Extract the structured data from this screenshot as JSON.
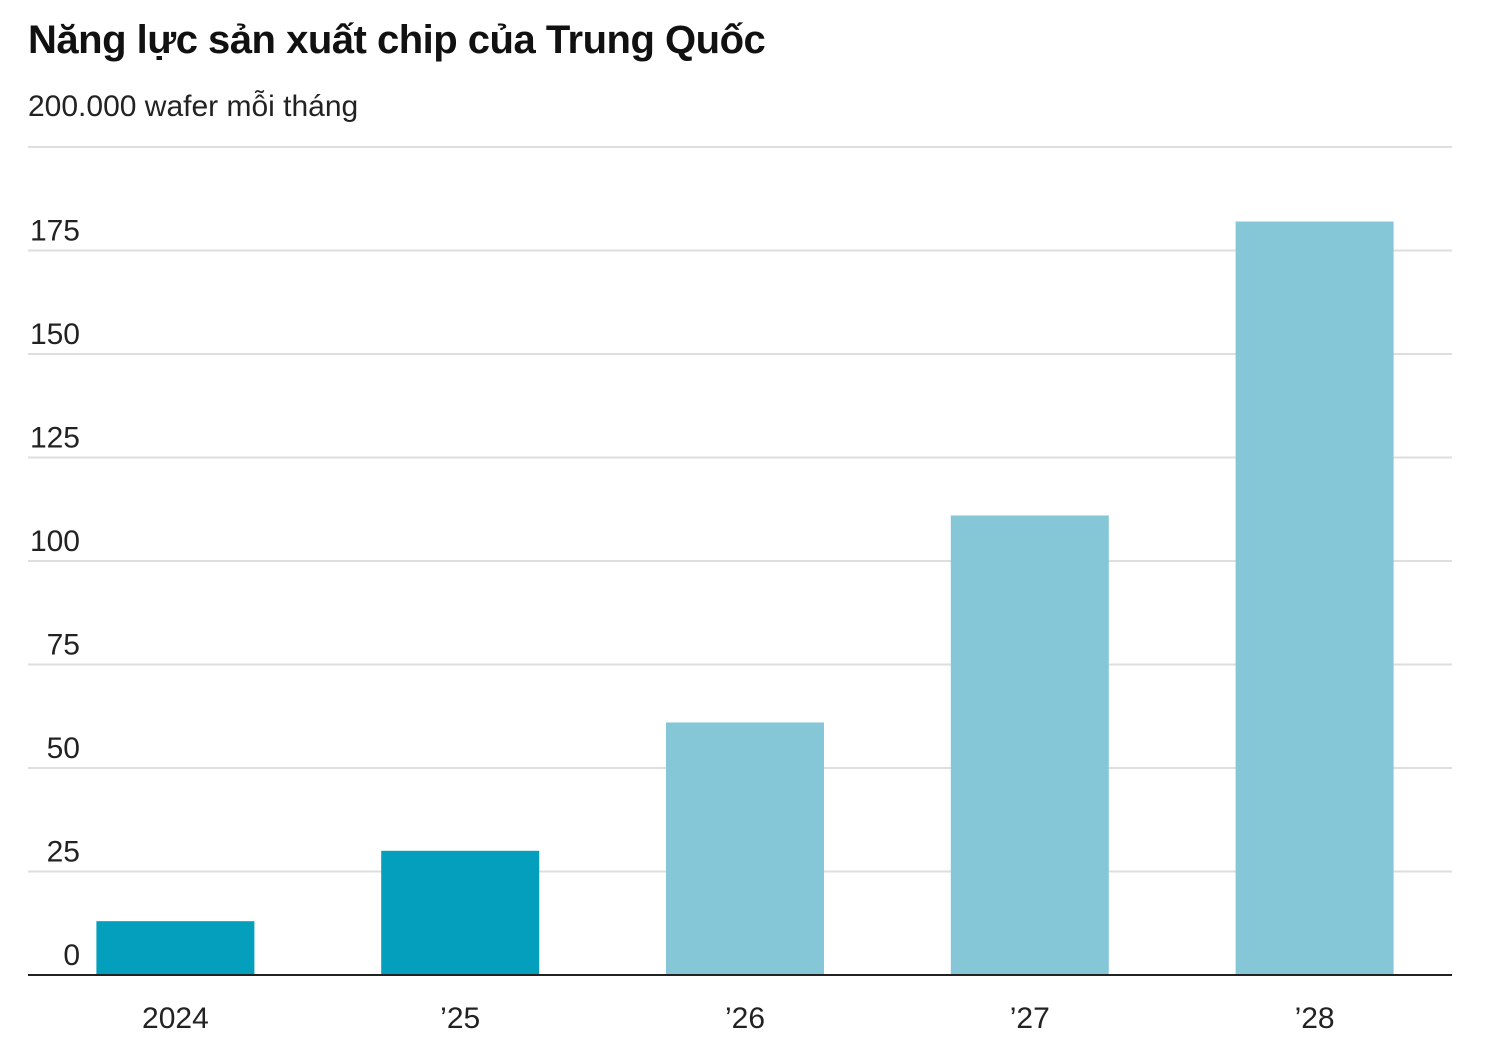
{
  "chart_data": {
    "type": "bar",
    "title": "Năng lực sản xuất chip của Trung Quốc",
    "subtitle": "200.000 wafer mỗi tháng",
    "xlabel": "",
    "ylabel": "",
    "categories": [
      "2024",
      "’25",
      "’26",
      "’27",
      "’28"
    ],
    "values": [
      13,
      30,
      61,
      111,
      182
    ],
    "bar_colors": [
      "#039fbc",
      "#039fbc",
      "#86c7d7",
      "#86c7d7",
      "#86c7d7"
    ],
    "yticks": [
      0,
      25,
      50,
      75,
      100,
      125,
      150,
      175
    ],
    "ylim": [
      0,
      200
    ],
    "grid": true,
    "gridline_color": "#dedede",
    "axis_color": "#222222"
  }
}
